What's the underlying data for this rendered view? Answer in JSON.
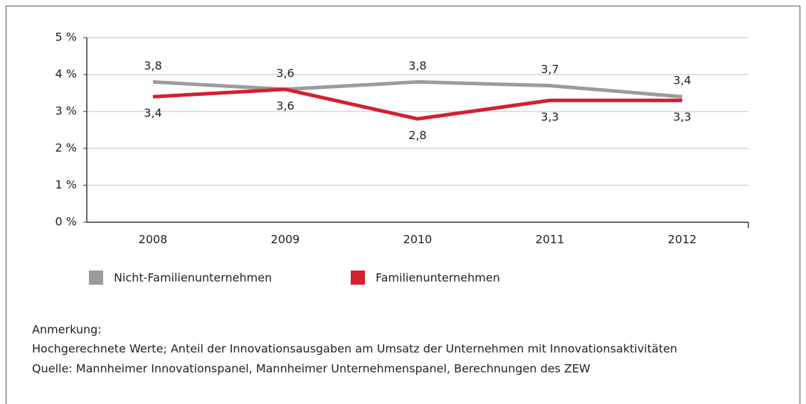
{
  "chart_data": {
    "type": "line",
    "categories": [
      "2008",
      "2009",
      "2010",
      "2011",
      "2012"
    ],
    "series": [
      {
        "name": "Nicht-Familienunternehmen",
        "color": "#9b9b9d",
        "values": [
          3.8,
          3.6,
          3.8,
          3.7,
          3.4
        ],
        "value_labels": [
          "3,8",
          "3,6",
          "3,8",
          "3,7",
          "3,4"
        ]
      },
      {
        "name": "Familienunternehmen",
        "color": "#d4202f",
        "values": [
          3.4,
          3.6,
          2.8,
          3.3,
          3.3
        ],
        "value_labels": [
          "3,4",
          "3,6",
          "2,8",
          "3,3",
          "3,3"
        ]
      }
    ],
    "ylim": [
      0,
      5
    ],
    "yticks": [
      {
        "value": 0,
        "label": "0 %"
      },
      {
        "value": 1,
        "label": "1 %"
      },
      {
        "value": 2,
        "label": "2 %"
      },
      {
        "value": 3,
        "label": "3 %"
      },
      {
        "value": 4,
        "label": "4 %"
      },
      {
        "value": 5,
        "label": "5 %"
      }
    ],
    "grid": true,
    "note_title": "Anmerkung:",
    "notes": [
      "Hochgerechnete Werte; Anteil der Innovationsausgaben am Umsatz der Unternehmen mit Innovationsaktivitäten",
      "Quelle: Mannheimer Innovationspanel, Mannheimer Unternehmenspanel, Berechnungen des ZEW"
    ]
  }
}
